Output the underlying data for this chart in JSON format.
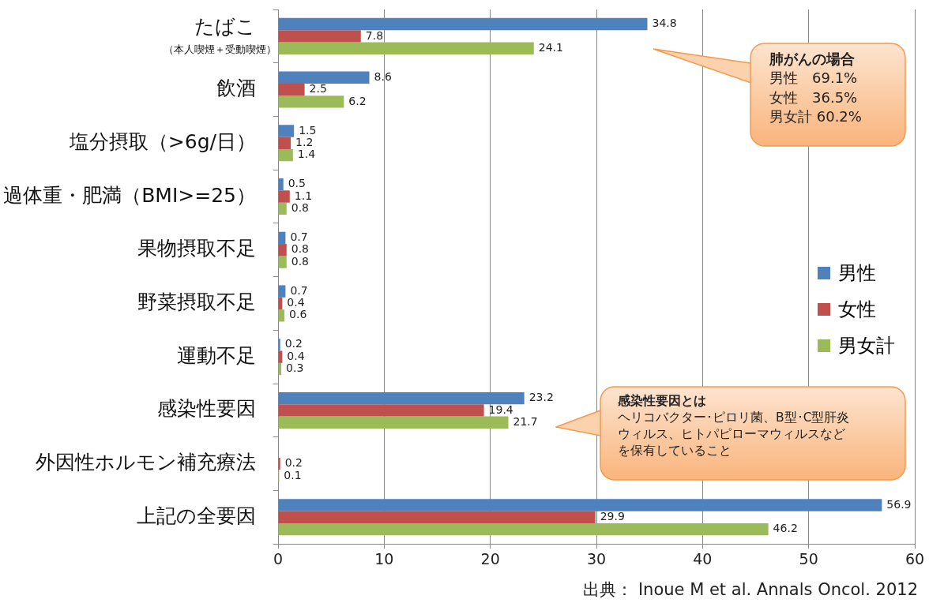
{
  "chart_data": {
    "type": "bar",
    "orientation": "horizontal",
    "categories": [
      "たばこ",
      "飲酒",
      "塩分摂取（>6g/日）",
      "過体重・肥満（BMI>=25）",
      "果物摂取不足",
      "野菜摂取不足",
      "運動不足",
      "感染性要因",
      "外因性ホルモン補充療法",
      "上記の全要因"
    ],
    "series": [
      {
        "name": "男性",
        "color": "#4f81bd",
        "values": [
          34.8,
          8.6,
          1.5,
          0.5,
          0.7,
          0.7,
          0.2,
          23.2,
          null,
          56.9
        ]
      },
      {
        "name": "女性",
        "color": "#c0504d",
        "values": [
          7.8,
          2.5,
          1.2,
          1.1,
          0.8,
          0.4,
          0.4,
          19.4,
          0.2,
          29.9
        ]
      },
      {
        "name": "男女計",
        "color": "#9bbb59",
        "values": [
          24.1,
          6.2,
          1.4,
          0.8,
          0.8,
          0.6,
          0.3,
          21.7,
          0.1,
          46.2
        ]
      }
    ],
    "xlim": [
      0,
      60
    ],
    "xticks": [
      0,
      10,
      20,
      30,
      40,
      50,
      60
    ],
    "grid": "x",
    "legend": "right",
    "data_labels": true,
    "annotations": [
      "（本人喫煙＋受動喫煙）",
      "肺がんの場合",
      "男性　69.1%",
      "女性　36.5%",
      "男女計 60.2%",
      "感染性要因とは",
      "ヘリコバクター･ピロリ菌、B型･C型肝炎ウィルス、ヒトパピローマウィルスなどを保有していること",
      "出典： Inoue M et al. Annals Oncol. 2012"
    ]
  }
}
